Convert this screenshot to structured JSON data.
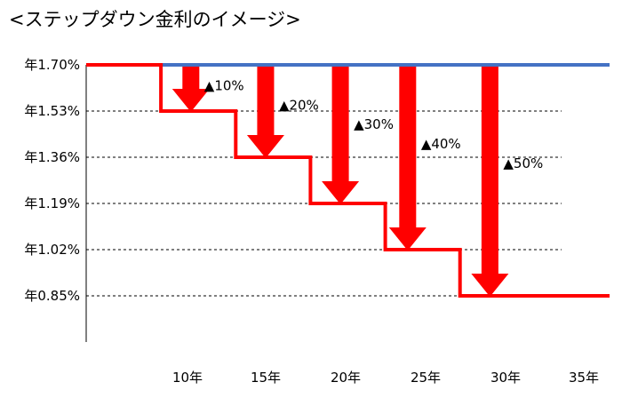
{
  "chart_data": {
    "type": "line",
    "title": "<ステップダウン金利のイメージ>",
    "xlabel": "",
    "ylabel": "",
    "x_ticks": [
      "10年",
      "15年",
      "20年",
      "25年",
      "30年",
      "35年"
    ],
    "y_ticks": [
      "年1.70%",
      "年1.53%",
      "年1.36%",
      "年1.19%",
      "年1.02%",
      "年0.85%"
    ],
    "y_tick_values": [
      1.7,
      1.53,
      1.36,
      1.19,
      1.02,
      0.85
    ],
    "xlim": [
      0,
      35
    ],
    "ylim": [
      0.68,
      1.7
    ],
    "grid": "horizontal-dashed",
    "series": [
      {
        "color": "#4472c4",
        "points": [
          [
            0,
            1.7
          ],
          [
            35,
            1.7
          ]
        ]
      },
      {
        "color": "#ff0000",
        "points": [
          [
            0,
            1.7
          ],
          [
            5,
            1.7
          ],
          [
            5,
            1.53
          ],
          [
            10,
            1.53
          ],
          [
            10,
            1.36
          ],
          [
            15,
            1.36
          ],
          [
            15,
            1.19
          ],
          [
            20,
            1.19
          ],
          [
            20,
            1.02
          ],
          [
            25,
            1.02
          ],
          [
            25,
            0.85
          ],
          [
            35,
            0.85
          ]
        ]
      }
    ],
    "annotations": [
      {
        "text": "▲10%",
        "x": 7.0,
        "top": 1.7,
        "bottom": 1.53
      },
      {
        "text": "▲20%",
        "x": 12.0,
        "top": 1.7,
        "bottom": 1.36
      },
      {
        "text": "▲30%",
        "x": 17.0,
        "top": 1.7,
        "bottom": 1.19
      },
      {
        "text": "▲40%",
        "x": 21.5,
        "top": 1.7,
        "bottom": 1.02
      },
      {
        "text": "▲50%",
        "x": 27.0,
        "top": 1.7,
        "bottom": 0.85
      }
    ],
    "colors": {
      "baseline": "#4472c4",
      "stepdown": "#ff0000",
      "arrow": "#ff0000"
    }
  }
}
